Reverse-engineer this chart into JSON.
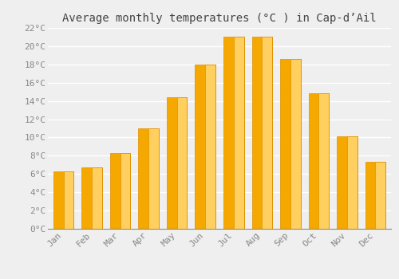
{
  "title": "Average monthly temperatures (°C ) in Cap-d’Ail",
  "months": [
    "Jan",
    "Feb",
    "Mar",
    "Apr",
    "May",
    "Jun",
    "Jul",
    "Aug",
    "Sep",
    "Oct",
    "Nov",
    "Dec"
  ],
  "temperatures": [
    6.3,
    6.7,
    8.3,
    11.0,
    14.4,
    18.0,
    21.0,
    21.0,
    18.6,
    14.8,
    10.1,
    7.3
  ],
  "bar_color_left": "#F5A800",
  "bar_color_right": "#FFD060",
  "bar_edge_color": "#E09000",
  "ylim": [
    0,
    22
  ],
  "yticks": [
    0,
    2,
    4,
    6,
    8,
    10,
    12,
    14,
    16,
    18,
    20,
    22
  ],
  "background_color": "#EFEFEF",
  "grid_color": "#FFFFFF",
  "title_fontsize": 10,
  "tick_fontsize": 8,
  "font_family": "monospace"
}
